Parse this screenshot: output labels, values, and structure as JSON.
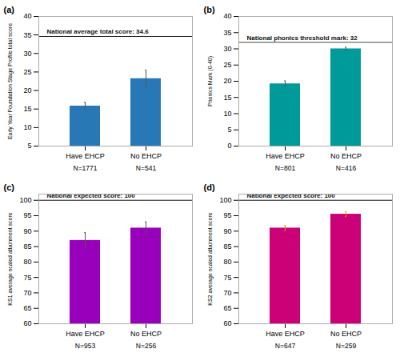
{
  "chart_data": [
    {
      "type": "bar",
      "title": "(a)",
      "categories": [
        "Have EHCP",
        "No EHCP"
      ],
      "values": [
        15.8,
        23.2
      ],
      "errors": [
        1.0,
        2.3
      ],
      "color": "#2878b5",
      "error_color": "#555555",
      "sample_sizes": [
        "N=1771",
        "N=541"
      ],
      "ylabel": "Early Year Foundation Stage Profile total score",
      "ylim": [
        5,
        40
      ],
      "yticks": [
        5,
        10,
        15,
        20,
        25,
        30,
        35,
        40
      ],
      "grid": false,
      "annotations": [
        {
          "type": "hline",
          "y": 34.6,
          "label": "National average total score: 34.6",
          "color": "#111111"
        }
      ]
    },
    {
      "type": "bar",
      "title": "(b)",
      "categories": [
        "Have EHCP",
        "No EHCP"
      ],
      "values": [
        19.2,
        30.0
      ],
      "errors": [
        0.9,
        0.5
      ],
      "color": "#009a9a",
      "error_color": "#555555",
      "sample_sizes": [
        "N=801",
        "N=416"
      ],
      "ylabel": "Phonics Mark (0-40)",
      "ylim": [
        0,
        40
      ],
      "yticks": [
        0,
        5,
        10,
        15,
        20,
        25,
        30,
        35,
        40
      ],
      "grid": false,
      "annotations": [
        {
          "type": "hline",
          "y": 32,
          "label": "National phonics threshold mark: 32",
          "color": "#444444"
        }
      ]
    },
    {
      "type": "bar",
      "title": "(c)",
      "categories": [
        "Have EHCP",
        "No EHCP"
      ],
      "values": [
        87.0,
        91.0
      ],
      "errors": [
        2.5,
        2.0
      ],
      "color": "#9900bb",
      "error_color": "#555555",
      "sample_sizes": [
        "N=953",
        "N=256"
      ],
      "ylabel": "KS1 average scaled attainment score",
      "ylim": [
        60,
        102
      ],
      "yticks": [
        60,
        65,
        70,
        75,
        80,
        85,
        90,
        95,
        100
      ],
      "grid": false,
      "annotations": [
        {
          "type": "hline",
          "y": 100,
          "label": "National expected score: 100",
          "color": "#111111"
        }
      ]
    },
    {
      "type": "bar",
      "title": "(d)",
      "categories": [
        "Have EHCP",
        "No EHCP"
      ],
      "values": [
        91.0,
        95.5
      ],
      "errors": [
        0.8,
        0.8
      ],
      "color": "#cc0077",
      "error_color": "#cc9900",
      "sample_sizes": [
        "N=647",
        "N=259"
      ],
      "ylabel": "KS2 average scaled attainment score",
      "ylim": [
        60,
        102
      ],
      "yticks": [
        60,
        65,
        70,
        75,
        80,
        85,
        90,
        95,
        100
      ],
      "grid": false,
      "annotations": [
        {
          "type": "hline",
          "y": 100,
          "label": "National expected score: 100",
          "color": "#111111"
        }
      ]
    }
  ]
}
